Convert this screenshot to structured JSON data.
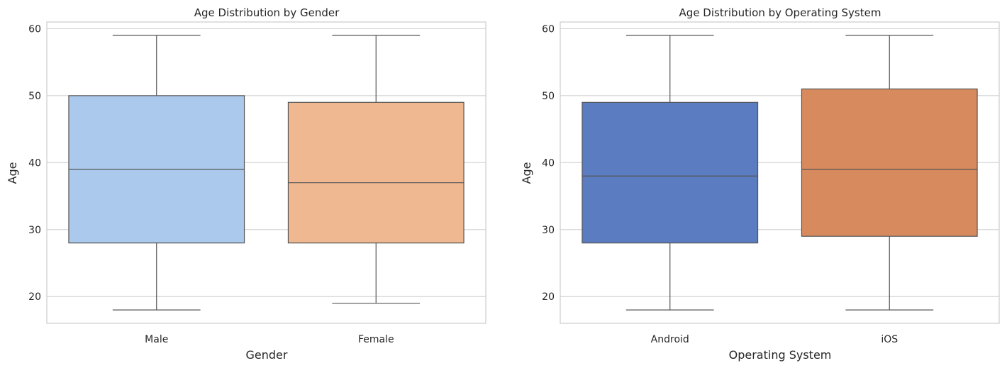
{
  "chart_data": [
    {
      "type": "box",
      "title": "Age Distribution by Gender",
      "xlabel": "Gender",
      "ylabel": "Age",
      "ylim": [
        16,
        61
      ],
      "yticks": [
        20,
        30,
        40,
        50,
        60
      ],
      "grid": true,
      "categories": [
        "Male",
        "Female"
      ],
      "colors": [
        "#abc9ec",
        "#f0b891"
      ],
      "boxes": [
        {
          "category": "Male",
          "min": 18,
          "q1": 28,
          "median": 39,
          "q3": 50,
          "max": 59
        },
        {
          "category": "Female",
          "min": 19,
          "q1": 28,
          "median": 37,
          "q3": 49,
          "max": 59
        }
      ]
    },
    {
      "type": "box",
      "title": "Age Distribution by Operating System",
      "xlabel": "Operating System",
      "ylabel": "Age",
      "ylim": [
        16,
        61
      ],
      "yticks": [
        20,
        30,
        40,
        50,
        60
      ],
      "grid": true,
      "categories": [
        "Android",
        "iOS"
      ],
      "colors": [
        "#5b7cc0",
        "#d88a5f"
      ],
      "boxes": [
        {
          "category": "Android",
          "min": 18,
          "q1": 28,
          "median": 38,
          "q3": 49,
          "max": 59
        },
        {
          "category": "iOS",
          "min": 18,
          "q1": 29,
          "median": 39,
          "q3": 51,
          "max": 59
        }
      ]
    }
  ]
}
